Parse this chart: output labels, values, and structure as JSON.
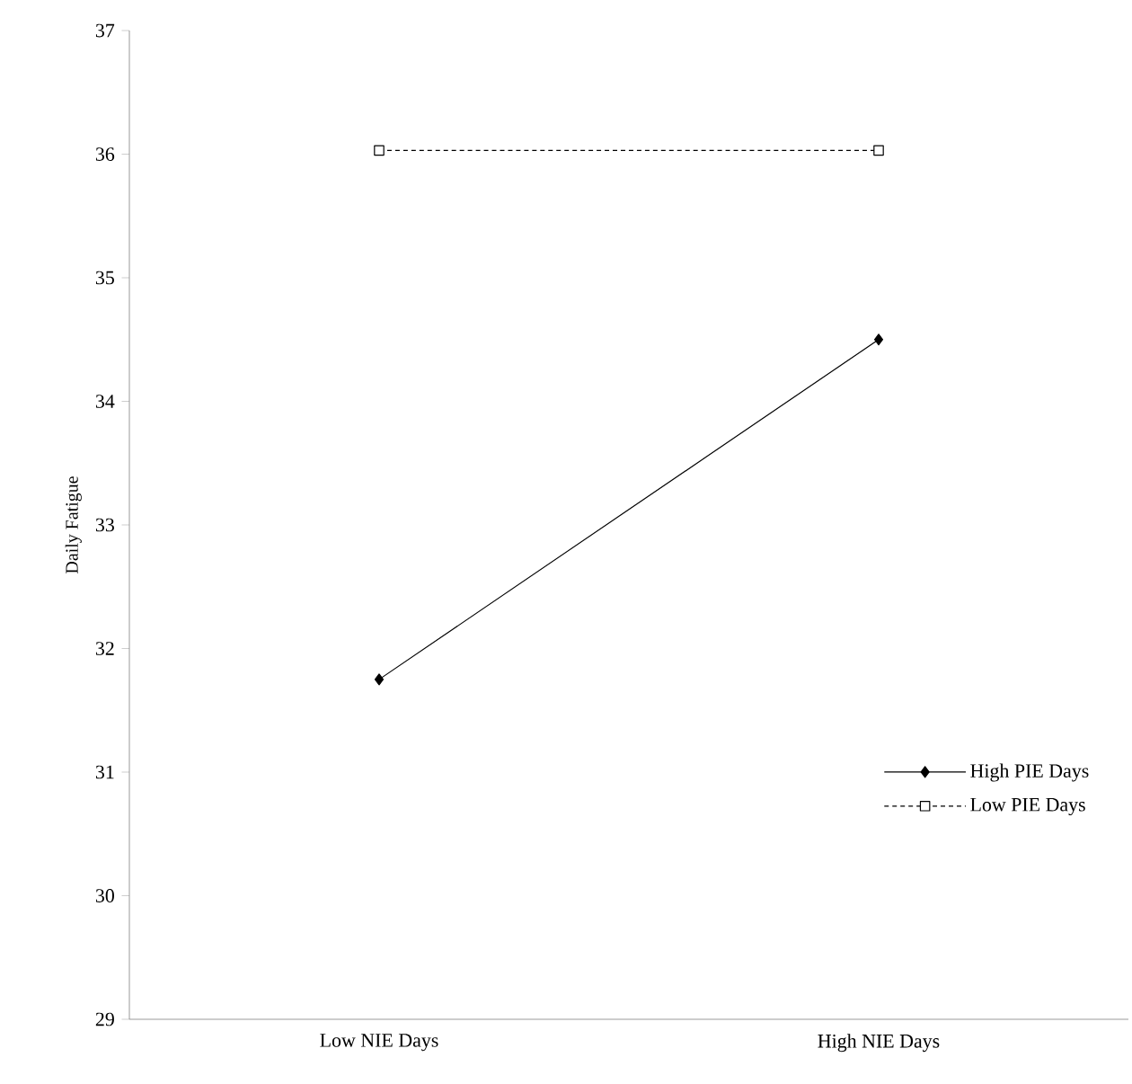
{
  "chart_data": {
    "type": "line",
    "ylabel": "Daily Fatigue",
    "categories": [
      "Low NIE Days",
      "High NIE Days"
    ],
    "series": [
      {
        "name": "High PIE Days",
        "color": "#000000",
        "values": [
          31.75,
          34.5
        ],
        "marker": "diamond",
        "line_style": "solid"
      },
      {
        "name": "Low PIE Days",
        "color": "#000000",
        "values": [
          36.03,
          36.03
        ],
        "marker": "square",
        "line_style": "dashed"
      }
    ],
    "ylim": [
      29,
      37
    ],
    "yticks": [
      29,
      30,
      31,
      32,
      33,
      34,
      35,
      36,
      37
    ],
    "grid": false,
    "legend": "bottom right"
  }
}
